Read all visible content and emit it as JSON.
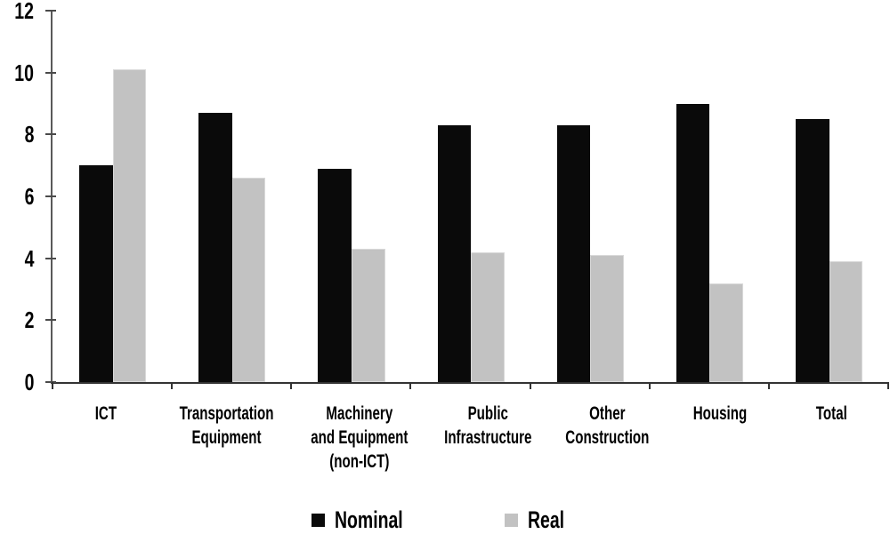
{
  "chart_data": {
    "type": "bar",
    "title": "",
    "categories": [
      {
        "label": "ICT",
        "lines": [
          "ICT"
        ]
      },
      {
        "label": "Transportation Equipment",
        "lines": [
          "Transportation",
          "Equipment"
        ]
      },
      {
        "label": "Machinery and Equipment (non-ICT)",
        "lines": [
          "Machinery",
          "and Equipment",
          "(non-ICT)"
        ]
      },
      {
        "label": "Public Infrastructure",
        "lines": [
          "Public",
          "Infrastructure"
        ]
      },
      {
        "label": "Other Construction",
        "lines": [
          "Other",
          "Construction"
        ]
      },
      {
        "label": "Housing",
        "lines": [
          "Housing"
        ]
      },
      {
        "label": "Total",
        "lines": [
          "Total"
        ]
      }
    ],
    "series": [
      {
        "name": "Nominal",
        "color": "#0a0a0a",
        "values": [
          7.0,
          8.7,
          6.9,
          8.3,
          8.3,
          9.0,
          8.5
        ]
      },
      {
        "name": "Real",
        "color": "#c2c2c2",
        "values": [
          10.1,
          6.6,
          4.3,
          4.2,
          4.1,
          3.2,
          3.9
        ]
      }
    ],
    "xlabel": "",
    "ylabel": "",
    "ylim": [
      0,
      12
    ],
    "yticks": [
      0,
      2,
      4,
      6,
      8,
      10,
      12
    ],
    "grid": false,
    "legend_position": "bottom",
    "colors": {
      "axis": "#4a4a4a",
      "text": "#000000",
      "background": "#ffffff"
    }
  }
}
